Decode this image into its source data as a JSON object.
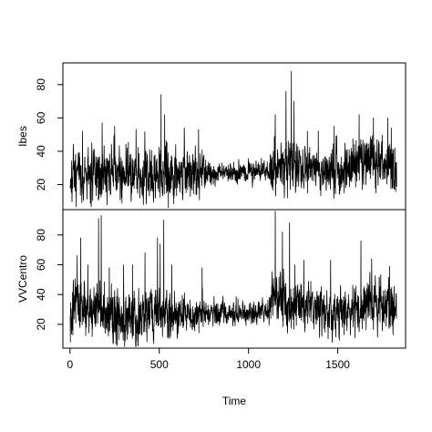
{
  "chart_data": {
    "type": "line",
    "title": "",
    "xlabel": "Time",
    "xlim": [
      -40,
      1880
    ],
    "xticks": [
      0,
      500,
      1000,
      1500
    ],
    "xtick_labels": [
      "0",
      "500",
      "1000",
      "1500"
    ],
    "panels": [
      {
        "name": "Ibes",
        "ylabel": "Ibes",
        "ylim": [
          5,
          93
        ],
        "yticks": [
          20,
          40,
          60,
          80
        ],
        "ytick_labels": [
          "20",
          "40",
          "60",
          "80"
        ],
        "x_range": [
          1,
          1830
        ],
        "n_points": 1830,
        "baseline": [
          [
            0,
            24
          ],
          [
            300,
            28
          ],
          [
            600,
            27
          ],
          [
            800,
            27
          ],
          [
            1100,
            28
          ],
          [
            1200,
            32
          ],
          [
            1300,
            30
          ],
          [
            1500,
            28
          ],
          [
            1600,
            34
          ],
          [
            1700,
            32
          ],
          [
            1830,
            30
          ]
        ],
        "noise_amplitude": [
          [
            0,
            10
          ],
          [
            500,
            11
          ],
          [
            700,
            10
          ],
          [
            800,
            4
          ],
          [
            1100,
            4
          ],
          [
            1150,
            11
          ],
          [
            1400,
            9
          ],
          [
            1830,
            11
          ]
        ],
        "spikes": [
          [
            70,
            52
          ],
          [
            180,
            57
          ],
          [
            250,
            55
          ],
          [
            370,
            53
          ],
          [
            510,
            74
          ],
          [
            530,
            62
          ],
          [
            640,
            54
          ],
          [
            720,
            53
          ],
          [
            1150,
            62
          ],
          [
            1210,
            76
          ],
          [
            1240,
            88
          ],
          [
            1255,
            70
          ],
          [
            1330,
            52
          ],
          [
            1480,
            55
          ],
          [
            1620,
            62
          ],
          [
            1700,
            60
          ],
          [
            1780,
            60
          ],
          [
            1800,
            54
          ]
        ],
        "seed": 7
      },
      {
        "name": "VVCentro",
        "ylabel": "VVCentro",
        "ylim": [
          4,
          97
        ],
        "yticks": [
          20,
          40,
          60,
          80
        ],
        "ytick_labels": [
          "20",
          "40",
          "60",
          "80"
        ],
        "x_range": [
          1,
          1830
        ],
        "n_points": 1830,
        "baseline": [
          [
            0,
            34
          ],
          [
            100,
            32
          ],
          [
            300,
            24
          ],
          [
            480,
            28
          ],
          [
            600,
            27
          ],
          [
            1000,
            27
          ],
          [
            1100,
            28
          ],
          [
            1150,
            38
          ],
          [
            1250,
            32
          ],
          [
            1400,
            30
          ],
          [
            1550,
            25
          ],
          [
            1650,
            33
          ],
          [
            1830,
            32
          ]
        ],
        "noise_amplitude": [
          [
            0,
            12
          ],
          [
            500,
            10
          ],
          [
            800,
            6
          ],
          [
            1100,
            5
          ],
          [
            1150,
            12
          ],
          [
            1350,
            10
          ],
          [
            1830,
            11
          ]
        ],
        "spikes": [
          [
            40,
            66
          ],
          [
            60,
            78
          ],
          [
            100,
            60
          ],
          [
            160,
            91
          ],
          [
            175,
            93
          ],
          [
            220,
            58
          ],
          [
            300,
            60
          ],
          [
            350,
            60
          ],
          [
            420,
            68
          ],
          [
            490,
            78
          ],
          [
            505,
            74
          ],
          [
            525,
            90
          ],
          [
            570,
            60
          ],
          [
            740,
            58
          ],
          [
            1150,
            96
          ],
          [
            1190,
            82
          ],
          [
            1230,
            88
          ],
          [
            1260,
            60
          ],
          [
            1310,
            63
          ],
          [
            1460,
            63
          ],
          [
            1630,
            76
          ],
          [
            1690,
            64
          ],
          [
            1790,
            59
          ]
        ],
        "seed": 13
      }
    ]
  }
}
